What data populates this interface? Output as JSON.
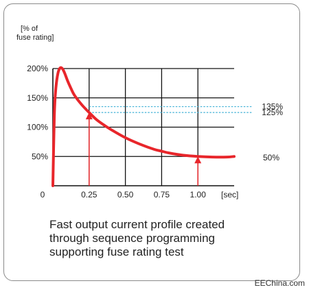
{
  "chart_data": {
    "type": "line",
    "ylabel_lines": [
      "[% of",
      "fuse rating]"
    ],
    "xlabel": "[sec]",
    "x_ticks": [
      "0",
      "0.25",
      "0.50",
      "0.75",
      "1.00"
    ],
    "x_tick_values": [
      0,
      0.25,
      0.5,
      0.75,
      1.0
    ],
    "y_ticks": [
      "50%",
      "100%",
      "150%",
      "200%"
    ],
    "y_tick_values": [
      50,
      100,
      150,
      200
    ],
    "xlim": [
      0,
      1.25
    ],
    "ylim": [
      0,
      200
    ],
    "grid": true,
    "series": [
      {
        "color": "#e8262b",
        "x": [
          0,
          0.01,
          0.02,
          0.035,
          0.05,
          0.065,
          0.08,
          0.1,
          0.125,
          0.15,
          0.2,
          0.25,
          0.3,
          0.35,
          0.4,
          0.5,
          0.6,
          0.7,
          0.75,
          0.8,
          0.9,
          1.0,
          1.1,
          1.2,
          1.25
        ],
        "y": [
          0,
          120,
          165,
          192,
          201,
          200,
          193,
          180,
          166,
          154,
          138,
          125,
          113,
          104,
          96,
          82,
          71,
          62,
          59,
          56,
          52,
          50,
          49,
          49,
          50
        ]
      }
    ],
    "reference_lines": [
      {
        "label": "135%",
        "value": 135,
        "color": "#3fb0d6"
      },
      {
        "label": "125%",
        "value": 125,
        "color": "#3fb0d6"
      }
    ],
    "right_label": "50%",
    "markers": [
      {
        "x": 0.25,
        "y": 125,
        "color": "#e8262b"
      },
      {
        "x": 1.0,
        "y": 50,
        "color": "#e8262b"
      }
    ]
  },
  "caption_lines": [
    "Fast output current profile created",
    "through sequence programming",
    "supporting fuse rating test"
  ],
  "watermark": "EEChina.com"
}
